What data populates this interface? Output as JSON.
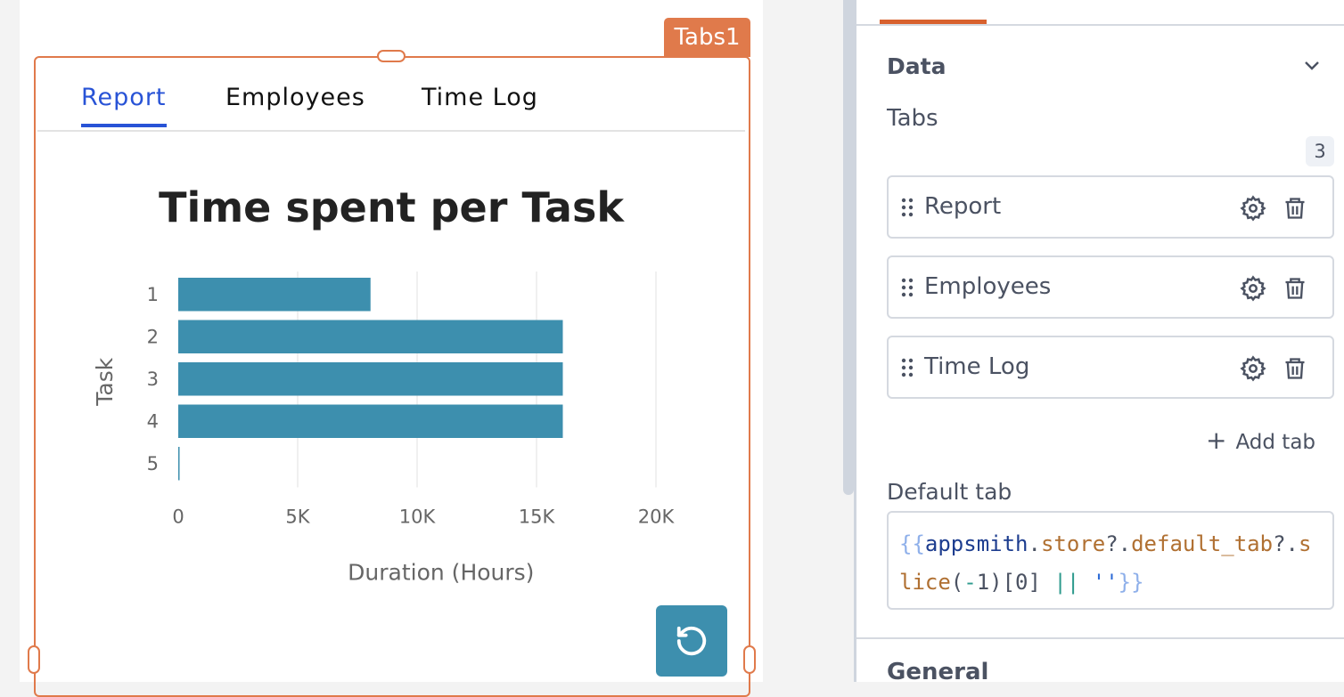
{
  "canvas": {
    "widget_label": "Tabs1",
    "tabs": [
      {
        "label": "Report",
        "active": true
      },
      {
        "label": "Employees",
        "active": false
      },
      {
        "label": "Time Log",
        "active": false
      }
    ],
    "reset_icon": "rotate-ccw-icon"
  },
  "chart_data": {
    "type": "bar",
    "orientation": "horizontal",
    "title": "Time spent per Task",
    "xlabel": "Duration (Hours)",
    "ylabel": "Task",
    "categories": [
      "1",
      "2",
      "3",
      "4",
      "5"
    ],
    "values": [
      8050,
      16100,
      16100,
      16100,
      50
    ],
    "xlim": [
      0,
      23000
    ],
    "xticks": [
      0,
      5000,
      10000,
      15000,
      20000
    ],
    "xtick_labels": [
      "0",
      "5K",
      "10K",
      "15K",
      "20K"
    ],
    "grid": true,
    "color": "#3d8fae"
  },
  "panel": {
    "section_title": "Data",
    "tabs_label": "Tabs",
    "tabs_count": "3",
    "tab_items": [
      "Report",
      "Employees",
      "Time Log"
    ],
    "add_tab_label": "Add tab",
    "default_tab_label": "Default tab",
    "code_parts": [
      "{{",
      "appsmith",
      ".",
      "store",
      "?.",
      "default_tab",
      "?",
      ".",
      "slice",
      "(",
      "-",
      "1)[0] ",
      "||",
      " ",
      "''",
      "}}"
    ],
    "next_section": "General",
    "accent": "#d8612e"
  }
}
